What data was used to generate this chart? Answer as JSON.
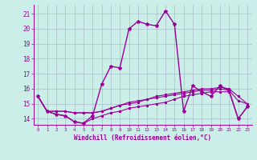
{
  "xlabel": "Windchill (Refroidissement éolien,°C)",
  "bg_color": "#cceee8",
  "grid_color": "#aabbcc",
  "line_color": "#990099",
  "x_ticks": [
    0,
    1,
    2,
    3,
    4,
    5,
    6,
    7,
    8,
    9,
    10,
    11,
    12,
    13,
    14,
    15,
    16,
    17,
    18,
    19,
    20,
    21,
    22,
    23
  ],
  "y_ticks": [
    14,
    15,
    16,
    17,
    18,
    19,
    20,
    21
  ],
  "ylim": [
    13.6,
    21.6
  ],
  "xlim": [
    -0.5,
    23.5
  ],
  "series": [
    [
      15.5,
      14.5,
      14.3,
      14.2,
      13.8,
      13.7,
      14.2,
      16.3,
      17.5,
      17.4,
      20.0,
      20.5,
      20.3,
      20.2,
      21.2,
      20.3,
      14.5,
      16.2,
      15.8,
      15.5,
      16.2,
      15.9,
      14.0,
      14.8
    ],
    [
      15.5,
      14.5,
      14.5,
      14.5,
      14.4,
      14.4,
      14.4,
      14.5,
      14.7,
      14.9,
      15.1,
      15.2,
      15.3,
      15.5,
      15.6,
      15.7,
      15.8,
      15.9,
      16.0,
      16.0,
      16.1,
      16.0,
      15.5,
      15.0
    ],
    [
      15.5,
      14.5,
      14.3,
      14.2,
      13.8,
      13.7,
      14.0,
      14.2,
      14.4,
      14.5,
      14.7,
      14.8,
      14.9,
      15.0,
      15.1,
      15.3,
      15.5,
      15.6,
      15.7,
      15.8,
      15.8,
      15.8,
      14.0,
      14.8
    ],
    [
      15.5,
      14.5,
      14.5,
      14.5,
      14.4,
      14.4,
      14.4,
      14.5,
      14.7,
      14.9,
      15.0,
      15.1,
      15.3,
      15.4,
      15.5,
      15.6,
      15.7,
      15.8,
      15.9,
      15.9,
      16.0,
      15.9,
      15.2,
      15.0
    ]
  ]
}
